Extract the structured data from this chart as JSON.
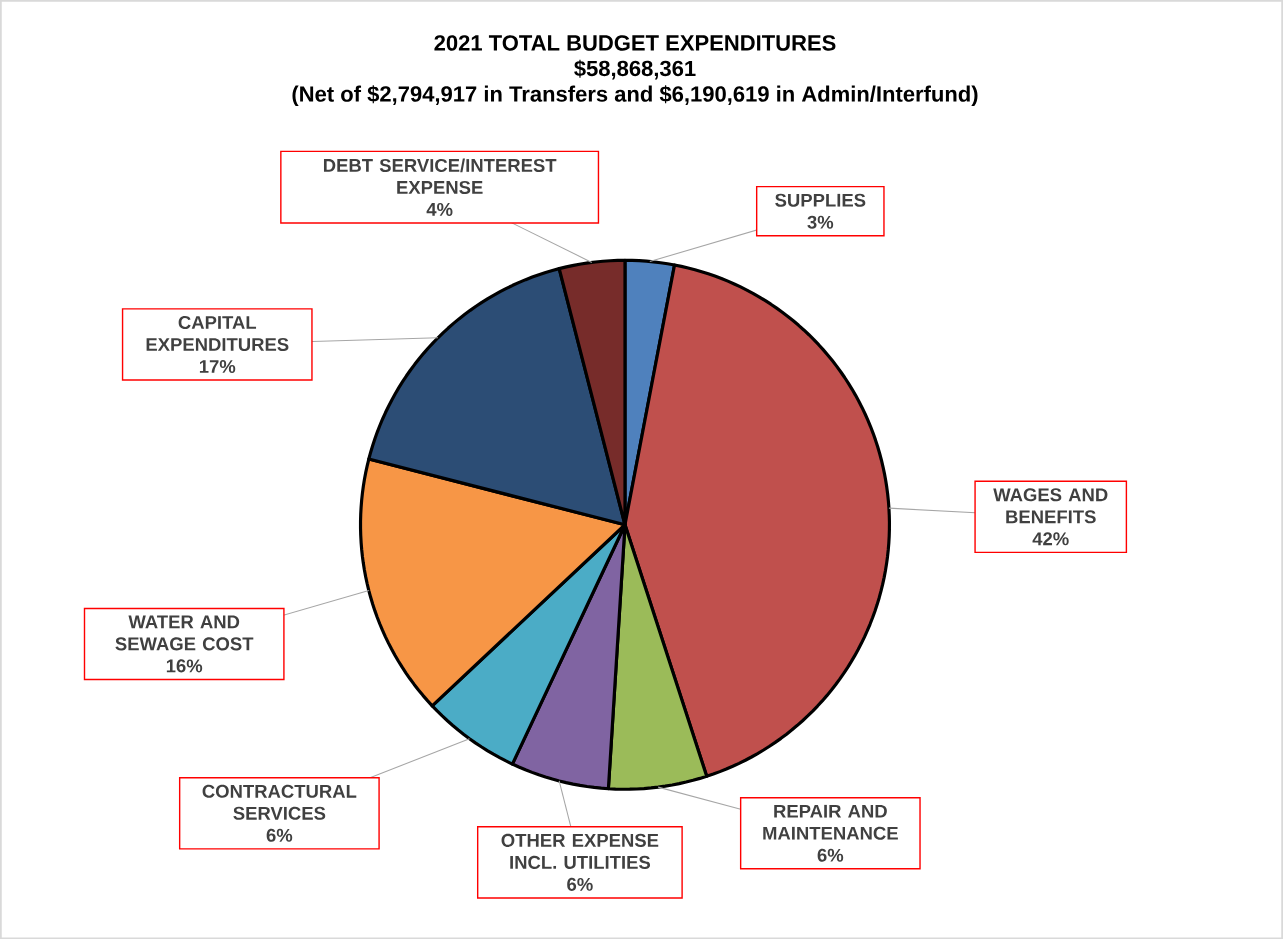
{
  "chart_data": {
    "type": "pie",
    "title": "2021 TOTAL BUDGET EXPENDITURES",
    "subtitle": "$58,868,361",
    "annotations": [
      "(Net of $2,794,917 in Transfers and $6,190,619 in Admin/Interfund)"
    ],
    "categories": [
      "SUPPLIES",
      "WAGES AND BENEFITS",
      "REPAIR AND MAINTENANCE",
      "OTHER EXPENSE INCL. UTILITIES",
      "CONTRACTURAL SERVICES",
      "WATER AND SEWAGE COST",
      "CAPITAL EXPENDITURES",
      "DEBT SERVICE/INTEREST EXPENSE"
    ],
    "values": [
      3,
      42,
      6,
      6,
      6,
      16,
      17,
      4
    ],
    "colors": [
      "#4f81bd",
      "#c0504d",
      "#9bbb59",
      "#8064a2",
      "#4bacc6",
      "#f79646",
      "#2c4d75",
      "#772c2a"
    ],
    "value_labels": [
      "3%",
      "42%",
      "6%",
      "6%",
      "6%",
      "16%",
      "17%",
      "4%"
    ]
  }
}
